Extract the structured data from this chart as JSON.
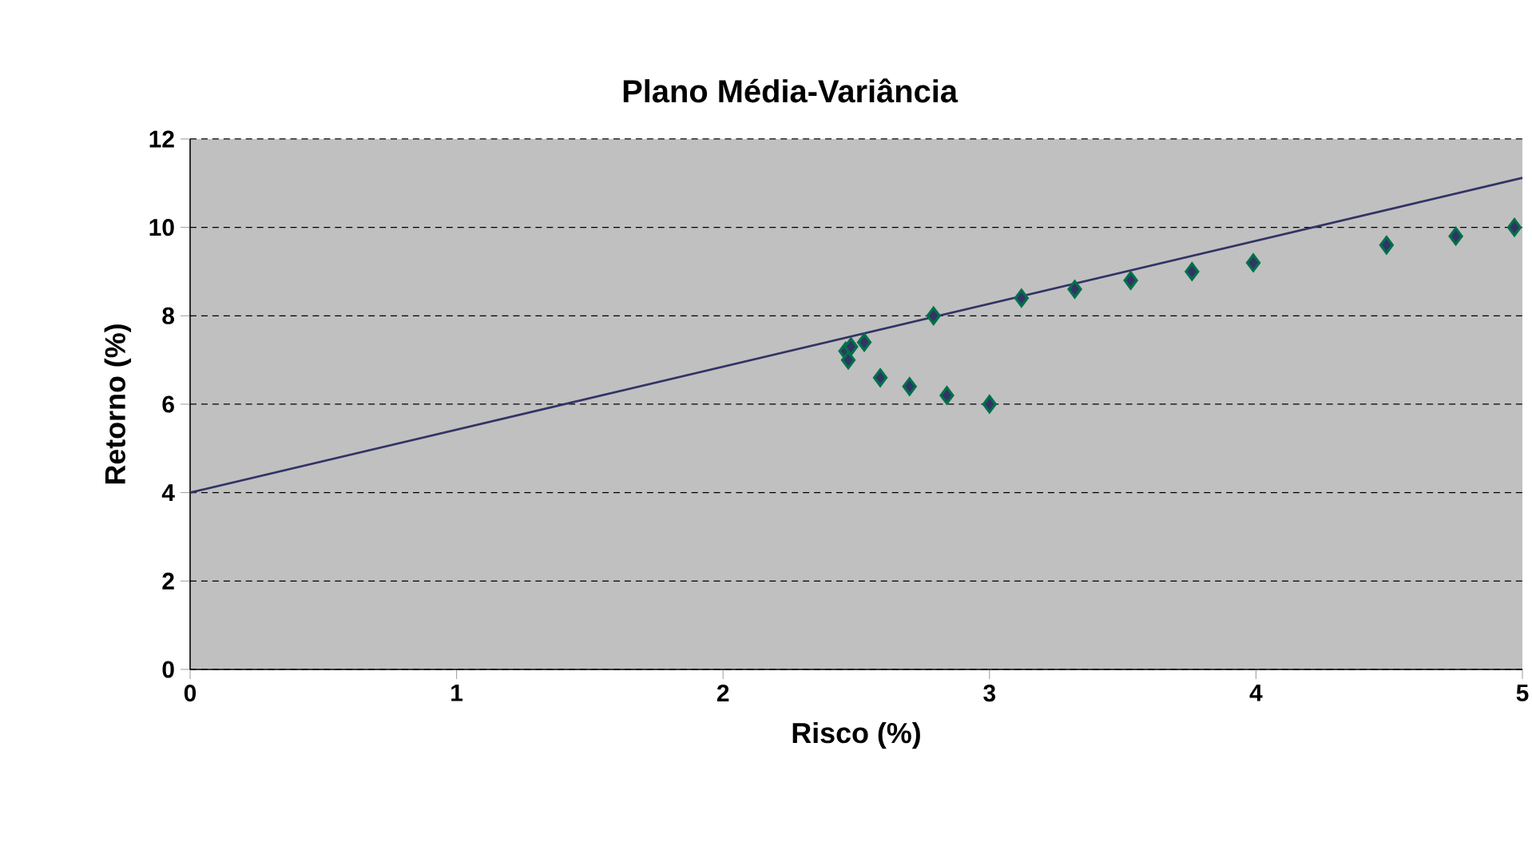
{
  "chart_data": {
    "type": "scatter",
    "title": "Plano Média-Variância",
    "xlabel": "Risco (%)",
    "ylabel": "Retorno (%)",
    "xlim": [
      0,
      5
    ],
    "ylim": [
      0,
      12
    ],
    "xticks": [
      0,
      1,
      2,
      3,
      4,
      5
    ],
    "yticks": [
      0,
      2,
      4,
      6,
      8,
      10,
      12
    ],
    "grid": "y",
    "series": [
      {
        "marker": "diamond",
        "color": "#00704a",
        "x": [
          2.46,
          2.47,
          2.48,
          2.53,
          2.59,
          2.7,
          2.84,
          3.0,
          2.79,
          3.12,
          3.32,
          3.53,
          3.76,
          3.99,
          4.49,
          4.75,
          4.97
        ],
        "values": [
          7.2,
          7.0,
          7.3,
          7.4,
          6.6,
          6.4,
          6.2,
          6.0,
          8.0,
          8.4,
          8.6,
          8.8,
          9.0,
          9.2,
          9.6,
          9.8,
          10.0
        ]
      },
      {
        "type": "line",
        "marker": "none",
        "line_style": "solid",
        "color": "#333366",
        "x": [
          0,
          5
        ],
        "values": [
          4,
          11.12
        ]
      }
    ]
  }
}
